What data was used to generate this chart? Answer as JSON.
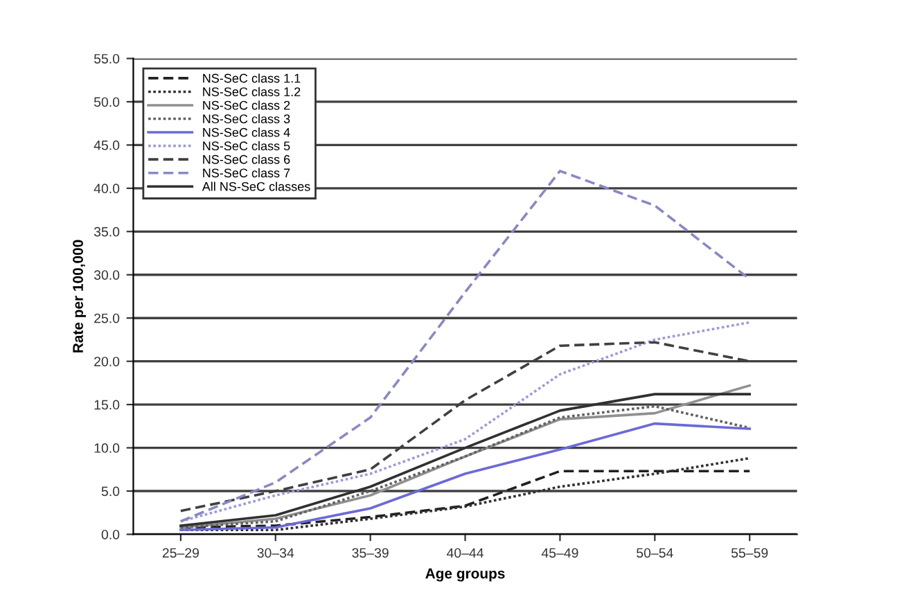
{
  "chart_data": {
    "type": "line",
    "xlabel": "Age groups",
    "ylabel": "Rate per 100,000",
    "categories": [
      "25–29",
      "30–34",
      "35–39",
      "40–44",
      "45–49",
      "50–54",
      "55–59"
    ],
    "ylim": [
      0,
      55
    ],
    "yticks": [
      {
        "value": 0,
        "label": "0.0"
      },
      {
        "value": 5,
        "label": "5.0"
      },
      {
        "value": 10,
        "label": "10.0"
      },
      {
        "value": 15,
        "label": "15.0"
      },
      {
        "value": 20,
        "label": "20.0"
      },
      {
        "value": 25,
        "label": "25.0"
      },
      {
        "value": 30,
        "label": "30.0"
      },
      {
        "value": 35,
        "label": "35.0"
      },
      {
        "value": 40,
        "label": "40.0"
      },
      {
        "value": 45,
        "label": "45.0"
      },
      {
        "value": 50,
        "label": "50.0"
      },
      {
        "value": 55,
        "label": "55.0"
      }
    ],
    "grid": "y",
    "legend": "top left",
    "marker": "none",
    "series": [
      {
        "name": "NS-SeC class 1.1",
        "color": "#202020",
        "line_style": "dashed",
        "values": [
          0.8,
          1.0,
          2.0,
          3.3,
          7.3,
          7.3,
          7.3
        ]
      },
      {
        "name": "NS-SeC class 1.2",
        "color": "#303030",
        "line_style": "dotted",
        "values": [
          0.5,
          0.5,
          1.8,
          3.2,
          5.5,
          7.0,
          8.8
        ]
      },
      {
        "name": "NS-SeC class 2",
        "color": "#909090",
        "line_style": "solid",
        "values": [
          0.8,
          1.8,
          4.5,
          9.0,
          13.3,
          14.0,
          17.2
        ]
      },
      {
        "name": "NS-SeC class 3",
        "color": "#606060",
        "line_style": "dotted",
        "values": [
          0.8,
          1.5,
          5.0,
          9.0,
          13.5,
          14.8,
          12.3
        ]
      },
      {
        "name": "NS-SeC class 4",
        "color": "#6a6ad8",
        "line_style": "solid",
        "values": [
          0.5,
          0.8,
          3.0,
          7.0,
          9.8,
          12.8,
          12.2
        ]
      },
      {
        "name": "NS-SeC class 5",
        "color": "#9a9ae0",
        "line_style": "dotted",
        "values": [
          1.5,
          4.5,
          7.0,
          11.0,
          18.5,
          22.5,
          24.5
        ]
      },
      {
        "name": "NS-SeC class 6",
        "color": "#404040",
        "line_style": "dashed",
        "values": [
          2.7,
          5.0,
          7.5,
          15.5,
          21.8,
          22.2,
          20.0
        ]
      },
      {
        "name": "NS-SeC class 7",
        "color": "#8888c8",
        "line_style": "dashed",
        "values": [
          1.5,
          6.0,
          13.5,
          28.0,
          42.0,
          38.0,
          29.5
        ]
      },
      {
        "name": "All NS-SeC classes",
        "color": "#303030",
        "line_style": "solid",
        "values": [
          1.0,
          2.2,
          5.5,
          10.0,
          14.3,
          16.2,
          16.2
        ]
      }
    ]
  }
}
